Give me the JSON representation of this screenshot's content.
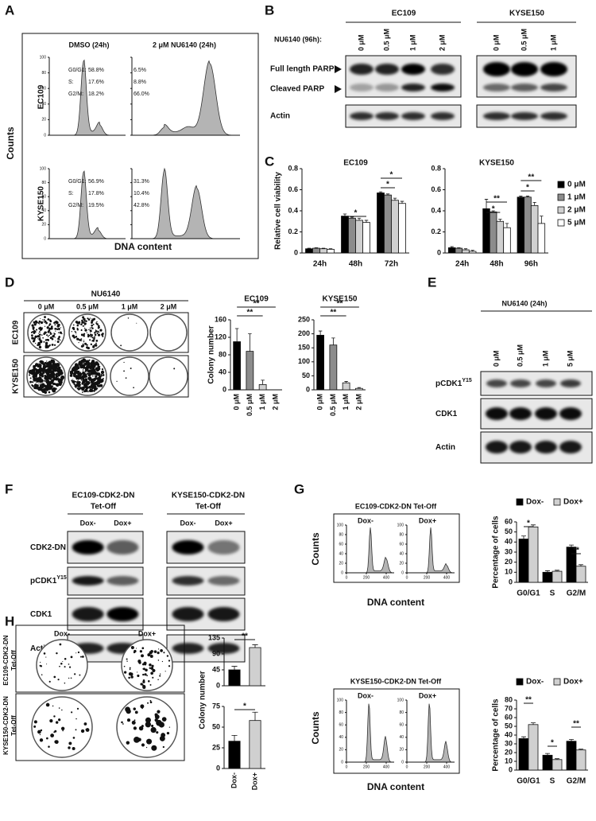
{
  "panel_letters": [
    "A",
    "B",
    "C",
    "D",
    "E",
    "F",
    "G",
    "H"
  ],
  "panel_a": {
    "columns": [
      "DMSO (24h)",
      "2 μM NU6140 (24h)"
    ],
    "rows": [
      "EC109",
      "KYSE150"
    ],
    "y_label": "Counts",
    "x_label": "DNA content",
    "ylim": [
      0,
      100
    ],
    "yticks": [
      0,
      20,
      40,
      60,
      80,
      100
    ],
    "phases": [
      "G0/G1:",
      "S:",
      "G2/M:"
    ],
    "stats": [
      {
        "dmso": [
          "58.8%",
          "17.6%",
          "18.2%"
        ],
        "nu6140": [
          "6.5%",
          "8.8%",
          "66.0%"
        ]
      },
      {
        "dmso": [
          "56.9%",
          "17.8%",
          "19.5%"
        ],
        "nu6140": [
          "31.3%",
          "10.4%",
          "42.8%"
        ]
      }
    ]
  },
  "panel_b": {
    "groups": [
      "EC109",
      "KYSE150"
    ],
    "treatment": "NU6140 (96h):",
    "lanes": [
      [
        "0 μM",
        "0.5 μM",
        "1 μM",
        "2 μM"
      ],
      [
        "0 μM",
        "0.5 μM",
        "1 μM"
      ]
    ],
    "bands": [
      "Full length PARP",
      "Cleaved PARP",
      "Actin"
    ]
  },
  "panel_d": {
    "treatment": "NU6140",
    "lanes": [
      "0 μM",
      "0.5 μM",
      "1 μM",
      "2 μM"
    ],
    "rows": [
      "EC109",
      "KYSE150"
    ]
  },
  "panel_e": {
    "treatment": "NU6140 (24h)",
    "lanes": [
      "0 μM",
      "0.5 μM",
      "1 μM",
      "5 μM"
    ],
    "bands": [
      {
        "text": "pCDK1",
        "sup": "Y15"
      },
      {
        "text": "CDK1"
      },
      {
        "text": "Actin"
      }
    ]
  },
  "panel_f": {
    "groups": [
      {
        "title": "EC109-CDK2-DN",
        "subtitle": "Tet-Off"
      },
      {
        "title": "KYSE150-CDK2-DN",
        "subtitle": "Tet-Off"
      }
    ],
    "lanes": [
      "Dox-",
      "Dox+"
    ],
    "bands": [
      {
        "text": "CDK2-DN"
      },
      {
        "text": "pCDK1",
        "sup": "Y15"
      },
      {
        "text": "CDK1"
      },
      {
        "text": "Actin"
      }
    ]
  },
  "panel_g": {
    "titles": [
      "EC109-CDK2-DN Tet-Off",
      "KYSE150-CDK2-DN Tet-Off"
    ],
    "lanes": [
      "Dox-",
      "Dox+"
    ],
    "y_label": "Counts",
    "x_label": "DNA content",
    "ylim": [
      0,
      100
    ],
    "yticks": [
      0,
      20,
      40,
      60,
      80,
      100
    ],
    "xlim": [
      0,
      480
    ],
    "xticks": [
      0,
      200,
      400
    ]
  },
  "panel_h": {
    "lanes": [
      "Dox-",
      "Dox+"
    ],
    "rows": [
      [
        "EC109-CDK2-DN",
        "Tet-Off"
      ],
      [
        "KYSE150-CDK2-DN",
        "Tet-Off"
      ]
    ]
  },
  "chart_data": [
    {
      "type": "bar",
      "title": "EC109",
      "y_label": "Relative cell viability",
      "categories": [
        "24h",
        "48h",
        "72h"
      ],
      "series": [
        {
          "color": "#000000",
          "values": [
            0.04,
            0.35,
            0.57
          ],
          "errors": [
            0.005,
            0.02,
            0.01
          ]
        },
        {
          "color": "#8c8c8c",
          "values": [
            0.045,
            0.33,
            0.55
          ],
          "errors": [
            0.005,
            0.01,
            0.01
          ]
        },
        {
          "color": "#d0d0d0",
          "values": [
            0.04,
            0.31,
            0.5
          ],
          "errors": [
            0.005,
            0.02,
            0.02
          ]
        },
        {
          "color": "#ffffff",
          "values": [
            0.035,
            0.29,
            0.47
          ],
          "errors": [
            0.005,
            0.02,
            0.02
          ]
        }
      ],
      "ylim": [
        0,
        0.8
      ],
      "yticks": [
        0,
        0.2,
        0.4,
        0.6,
        0.8
      ],
      "annotations": [
        "*",
        "*",
        "*"
      ]
    },
    {
      "type": "bar",
      "title": "KYSE150",
      "categories": [
        "24h",
        "48h",
        "96h"
      ],
      "series": [
        {
          "name": "0 μM",
          "color": "#000000",
          "values": [
            0.05,
            0.42,
            0.53
          ],
          "errors": [
            0.01,
            0.09,
            0.01
          ]
        },
        {
          "name": "1 μM",
          "color": "#8c8c8c",
          "values": [
            0.045,
            0.39,
            0.53
          ],
          "errors": [
            0.005,
            0.01,
            0.01
          ]
        },
        {
          "name": "2 μM",
          "color": "#d0d0d0",
          "values": [
            0.03,
            0.3,
            0.45
          ],
          "errors": [
            0.01,
            0.02,
            0.03
          ]
        },
        {
          "name": "5 μM",
          "color": "#ffffff",
          "values": [
            0.015,
            0.24,
            0.28
          ],
          "errors": [
            0.01,
            0.04,
            0.07
          ]
        }
      ],
      "ylim": [
        0,
        0.8
      ],
      "yticks": [
        0,
        0.2,
        0.4,
        0.6,
        0.8
      ],
      "annotations": [
        "**",
        "*",
        "**",
        "*"
      ]
    },
    {
      "type": "bar",
      "title": "EC109",
      "y_label": "Colony number",
      "categories": [
        "0 μM",
        "0.5 μM",
        "1 μM",
        "2 μM"
      ],
      "values": [
        110,
        88,
        12,
        0
      ],
      "errors": [
        30,
        40,
        10,
        0
      ],
      "colors": [
        "#000000",
        "#8c8c8c",
        "#d0d0d0",
        "#ffffff"
      ],
      "ylim": [
        0,
        160
      ],
      "yticks": [
        0,
        40,
        80,
        120,
        160
      ],
      "annotations": [
        "**",
        "**"
      ]
    },
    {
      "type": "bar",
      "title": "KYSE150",
      "categories": [
        "0 μM",
        "0.5 μM",
        "1 μM",
        "2 μM"
      ],
      "values": [
        195,
        160,
        25,
        5
      ],
      "errors": [
        15,
        25,
        5,
        3
      ],
      "colors": [
        "#000000",
        "#8c8c8c",
        "#d0d0d0",
        "#ffffff"
      ],
      "ylim": [
        0,
        250
      ],
      "yticks": [
        0,
        50,
        100,
        150,
        200,
        250
      ],
      "annotations": [
        "**",
        "**"
      ]
    },
    {
      "type": "bar",
      "y_label": "Percentage of cells",
      "categories": [
        "G0/G1",
        "S",
        "G2/M"
      ],
      "series": [
        {
          "name": "Dox-",
          "color": "#000000",
          "values": [
            43,
            10,
            35
          ],
          "errors": [
            3,
            1.5,
            2
          ]
        },
        {
          "name": "Dox+",
          "color": "#d0d0d0",
          "values": [
            55,
            11,
            16
          ],
          "errors": [
            2,
            1,
            1.5
          ]
        }
      ],
      "ylim": [
        0,
        60
      ],
      "yticks": [
        0,
        10,
        20,
        30,
        40,
        50,
        60
      ],
      "annotations": [
        "*",
        "**"
      ]
    },
    {
      "type": "bar",
      "y_label": "Percentage of cells",
      "categories": [
        "G0/G1",
        "S",
        "G2/M"
      ],
      "series": [
        {
          "name": "Dox-",
          "color": "#000000",
          "values": [
            36,
            17,
            33
          ],
          "errors": [
            2,
            2,
            2
          ]
        },
        {
          "name": "Dox+",
          "color": "#d0d0d0",
          "values": [
            52,
            12,
            23
          ],
          "errors": [
            2,
            1,
            1
          ]
        }
      ],
      "ylim": [
        0,
        80
      ],
      "yticks": [
        0,
        10,
        20,
        30,
        40,
        50,
        60,
        70,
        80
      ],
      "annotations": [
        "**",
        "*",
        "**"
      ]
    },
    {
      "type": "bar",
      "y_label": "Colony number",
      "values": [
        45,
        108
      ],
      "errors": [
        10,
        8
      ],
      "colors": [
        "#000000",
        "#d0d0d0"
      ],
      "ylim": [
        0,
        135
      ],
      "yticks": [
        0,
        45,
        90,
        135
      ],
      "annotations": [
        "**"
      ]
    },
    {
      "type": "bar",
      "categories": [
        "Dox-",
        "Dox+"
      ],
      "values": [
        33,
        58
      ],
      "errors": [
        7,
        10
      ],
      "colors": [
        "#000000",
        "#d0d0d0"
      ],
      "ylim": [
        0,
        75
      ],
      "yticks": [
        0,
        25,
        50,
        75
      ],
      "annotations": [
        "*"
      ]
    }
  ]
}
